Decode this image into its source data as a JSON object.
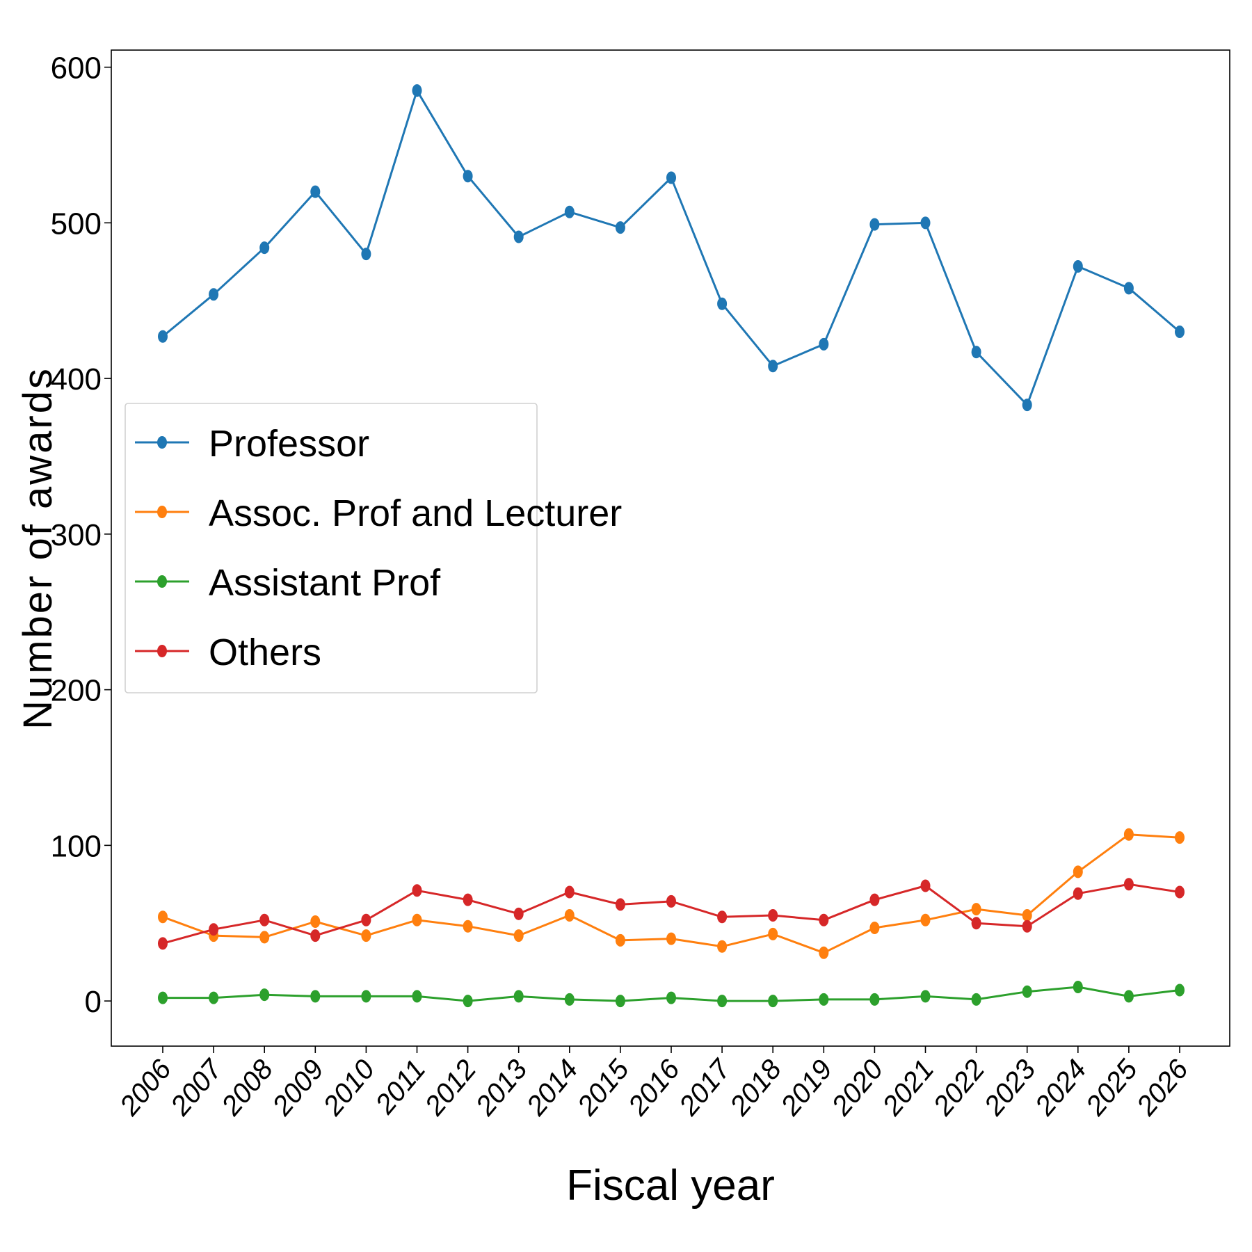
{
  "chart_data": {
    "type": "line",
    "title": "",
    "xlabel": "Fiscal year",
    "ylabel": "Number of awards",
    "categories": [
      "2006",
      "2007",
      "2008",
      "2009",
      "2010",
      "2011",
      "2012",
      "2013",
      "2014",
      "2015",
      "2016",
      "2017",
      "2018",
      "2019",
      "2020",
      "2021",
      "2022",
      "2023",
      "2024",
      "2025",
      "2026"
    ],
    "ylim": [
      -29,
      611
    ],
    "yticks": [
      0,
      100,
      200,
      300,
      400,
      500,
      600
    ],
    "grid": false,
    "legend_position": "center-left",
    "series": [
      {
        "name": "Professor",
        "color": "#1f77b4",
        "values": [
          427,
          454,
          484,
          520,
          480,
          585,
          530,
          491,
          507,
          497,
          529,
          448,
          408,
          422,
          499,
          500,
          417,
          383,
          472,
          458,
          430
        ]
      },
      {
        "name": "Assoc. Prof and Lecturer",
        "color": "#ff7f0e",
        "values": [
          54,
          42,
          41,
          51,
          42,
          52,
          48,
          42,
          55,
          39,
          40,
          35,
          43,
          31,
          47,
          52,
          59,
          55,
          83,
          107,
          105
        ]
      },
      {
        "name": "Assistant Prof",
        "color": "#2ca02c",
        "values": [
          2,
          2,
          4,
          3,
          3,
          3,
          0,
          3,
          1,
          0,
          2,
          0,
          0,
          1,
          1,
          3,
          1,
          6,
          9,
          3,
          7
        ]
      },
      {
        "name": "Others",
        "color": "#d62728",
        "values": [
          37,
          46,
          52,
          42,
          52,
          71,
          65,
          56,
          70,
          62,
          64,
          54,
          55,
          52,
          65,
          74,
          50,
          48,
          69,
          75,
          70
        ]
      }
    ]
  }
}
